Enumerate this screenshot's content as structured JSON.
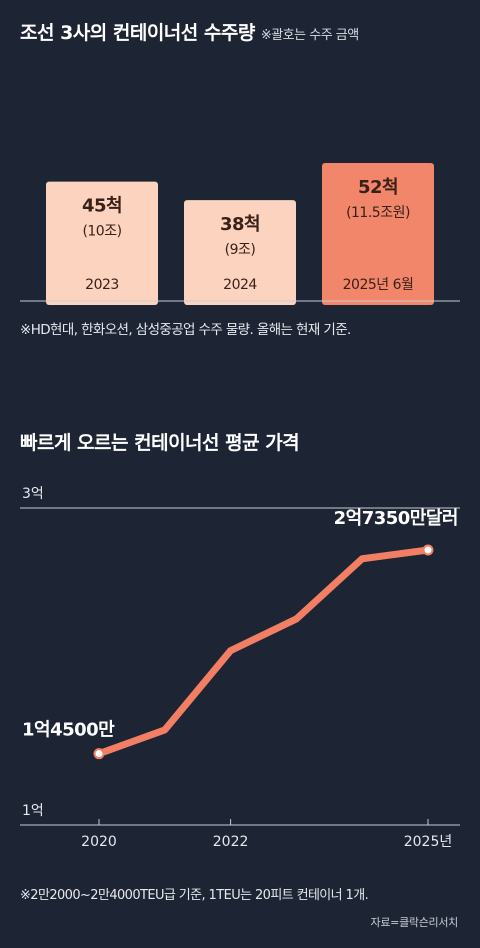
{
  "section1": {
    "title": "조선 3사의 컨테이너선 수주량",
    "subtitle": "※괄호는 수주 금액",
    "note": "※HD현대, 한화오션, 삼성중공업 수주 물량. 올해는 현재 기준."
  },
  "section2": {
    "title": "빠르게 오르는 컨테이너선 평균 가격",
    "note": "※2만2000~2만4000TEU급 기준, 1TEU는 20피트 컨테이너 1개.",
    "source": "자료=클락슨리서치"
  },
  "colors": {
    "background": "#1d2433",
    "bar_light": "#fbd3bf",
    "bar_highlight": "#f2866a",
    "line": "#f27f63",
    "axis": "#c8ccd4"
  },
  "chart_data": [
    {
      "type": "bar",
      "unit": "척",
      "categories": [
        "2023",
        "2024",
        "2025년 6월"
      ],
      "values": [
        45,
        38,
        52
      ],
      "value_labels": [
        "45척",
        "38척",
        "52척"
      ],
      "amount_labels": [
        "(10조)",
        "(9조)",
        "(11.5조원)"
      ],
      "highlight_index": 2,
      "ylim": [
        0,
        52
      ]
    },
    {
      "type": "line",
      "x": [
        2020,
        2021,
        2022,
        2023,
        2024,
        2025
      ],
      "values": [
        14500,
        16000,
        21000,
        23000,
        26800,
        27350
      ],
      "x_tick_labels": [
        "2020",
        "2022",
        "2025년"
      ],
      "x_ticks": [
        2020,
        2022,
        2025
      ],
      "y_tick_labels": [
        "3억",
        "1억"
      ],
      "y_ticks": [
        30000,
        10000
      ],
      "ylim": [
        10000,
        30000
      ],
      "annotations": {
        "start": "1억4500만",
        "end": "2억7350만달러"
      }
    }
  ]
}
